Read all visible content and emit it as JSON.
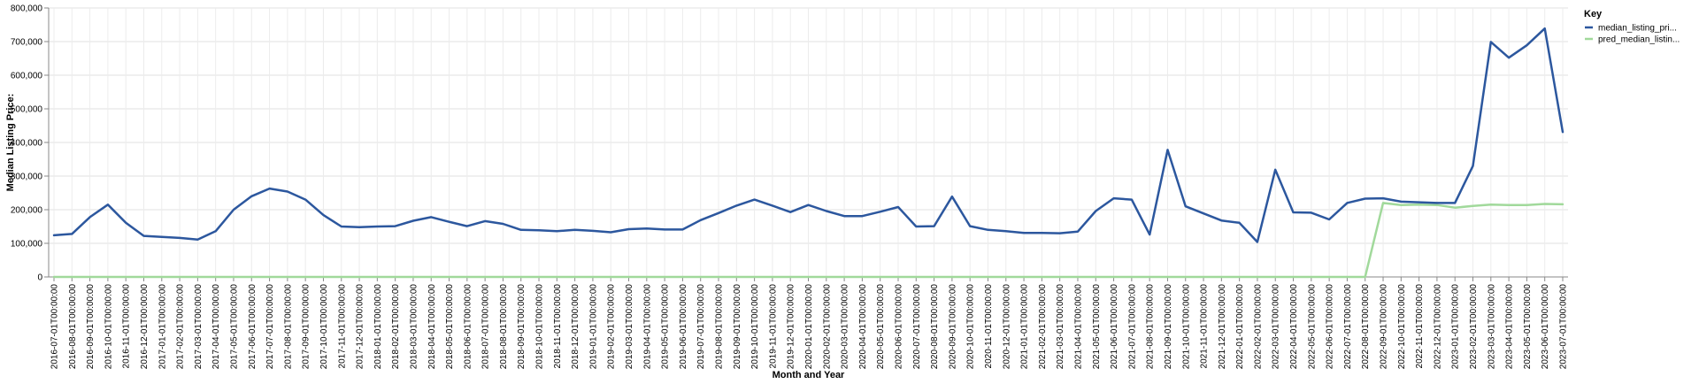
{
  "chart_data": {
    "type": "line",
    "xlabel": "Month and Year",
    "ylabel": "Median Listing Price:",
    "ylim": [
      0,
      800000
    ],
    "y_ticks": [
      0,
      100000,
      200000,
      300000,
      400000,
      500000,
      600000,
      700000,
      800000
    ],
    "y_tick_labels": [
      "0",
      "100,000",
      "200,000",
      "300,000",
      "400,000",
      "500,000",
      "600,000",
      "700,000",
      "800,000"
    ],
    "grid": true,
    "legend": {
      "title": "Key",
      "position": "right"
    },
    "x": [
      "2016-07-01T00:00:00",
      "2016-08-01T00:00:00",
      "2016-09-01T00:00:00",
      "2016-10-01T00:00:00",
      "2016-11-01T00:00:00",
      "2016-12-01T00:00:00",
      "2017-01-01T00:00:00",
      "2017-02-01T00:00:00",
      "2017-03-01T00:00:00",
      "2017-04-01T00:00:00",
      "2017-05-01T00:00:00",
      "2017-06-01T00:00:00",
      "2017-07-01T00:00:00",
      "2017-08-01T00:00:00",
      "2017-09-01T00:00:00",
      "2017-10-01T00:00:00",
      "2017-11-01T00:00:00",
      "2017-12-01T00:00:00",
      "2018-01-01T00:00:00",
      "2018-02-01T00:00:00",
      "2018-03-01T00:00:00",
      "2018-04-01T00:00:00",
      "2018-05-01T00:00:00",
      "2018-06-01T00:00:00",
      "2018-07-01T00:00:00",
      "2018-08-01T00:00:00",
      "2018-09-01T00:00:00",
      "2018-10-01T00:00:00",
      "2018-11-01T00:00:00",
      "2018-12-01T00:00:00",
      "2019-01-01T00:00:00",
      "2019-02-01T00:00:00",
      "2019-03-01T00:00:00",
      "2019-04-01T00:00:00",
      "2019-05-01T00:00:00",
      "2019-06-01T00:00:00",
      "2019-07-01T00:00:00",
      "2019-08-01T00:00:00",
      "2019-09-01T00:00:00",
      "2019-10-01T00:00:00",
      "2019-11-01T00:00:00",
      "2019-12-01T00:00:00",
      "2020-01-01T00:00:00",
      "2020-02-01T00:00:00",
      "2020-03-01T00:00:00",
      "2020-04-01T00:00:00",
      "2020-05-01T00:00:00",
      "2020-06-01T00:00:00",
      "2020-07-01T00:00:00",
      "2020-08-01T00:00:00",
      "2020-09-01T00:00:00",
      "2020-10-01T00:00:00",
      "2020-11-01T00:00:00",
      "2020-12-01T00:00:00",
      "2021-01-01T00:00:00",
      "2021-02-01T00:00:00",
      "2021-03-01T00:00:00",
      "2021-04-01T00:00:00",
      "2021-05-01T00:00:00",
      "2021-06-01T00:00:00",
      "2021-07-01T00:00:00",
      "2021-08-01T00:00:00",
      "2021-09-01T00:00:00",
      "2021-10-01T00:00:00",
      "2021-11-01T00:00:00",
      "2021-12-01T00:00:00",
      "2022-01-01T00:00:00",
      "2022-02-01T00:00:00",
      "2022-03-01T00:00:00",
      "2022-04-01T00:00:00",
      "2022-05-01T00:00:00",
      "2022-06-01T00:00:00",
      "2022-07-01T00:00:00",
      "2022-08-01T00:00:00",
      "2022-09-01T00:00:00",
      "2022-10-01T00:00:00",
      "2022-11-01T00:00:00",
      "2022-12-01T00:00:00",
      "2023-01-01T00:00:00",
      "2023-02-01T00:00:00",
      "2023-03-01T00:00:00",
      "2023-04-01T00:00:00",
      "2023-05-01T00:00:00",
      "2023-06-01T00:00:00",
      "2023-07-01T00:00:00"
    ],
    "series": [
      {
        "name": "median_listing_pri...",
        "color": "#2c579e",
        "values": [
          124000,
          128000,
          178000,
          215000,
          161000,
          122000,
          119000,
          116000,
          111000,
          136000,
          200000,
          240000,
          263000,
          254000,
          230000,
          184000,
          150000,
          148000,
          150000,
          151000,
          167000,
          178000,
          164000,
          151000,
          166000,
          158000,
          140000,
          139000,
          136000,
          140000,
          137000,
          133000,
          142000,
          144000,
          141000,
          141000,
          169000,
          190000,
          212000,
          230000,
          212000,
          193000,
          214000,
          196000,
          181000,
          181000,
          194000,
          208000,
          150000,
          151000,
          239000,
          151000,
          140000,
          136000,
          131000,
          131000,
          130000,
          135000,
          196000,
          234000,
          230000,
          126000,
          378000,
          210000,
          189000,
          168000,
          161000,
          104000,
          319000,
          192000,
          191000,
          171000,
          220000,
          233000,
          234000,
          224000,
          222000,
          220000,
          220000,
          330000,
          699000,
          652000,
          689000,
          739000,
          431000
        ]
      },
      {
        "name": "pred_median_listin...",
        "color": "#a1d99b",
        "values": [
          0,
          0,
          0,
          0,
          0,
          0,
          0,
          0,
          0,
          0,
          0,
          0,
          0,
          0,
          0,
          0,
          0,
          0,
          0,
          0,
          0,
          0,
          0,
          0,
          0,
          0,
          0,
          0,
          0,
          0,
          0,
          0,
          0,
          0,
          0,
          0,
          0,
          0,
          0,
          0,
          0,
          0,
          0,
          0,
          0,
          0,
          0,
          0,
          0,
          0,
          0,
          0,
          0,
          0,
          0,
          0,
          0,
          0,
          0,
          0,
          0,
          0,
          0,
          0,
          0,
          0,
          0,
          0,
          0,
          0,
          0,
          0,
          0,
          0,
          220000,
          214000,
          215000,
          214000,
          206000,
          211000,
          215000,
          214000,
          214000,
          217000,
          216000
        ]
      }
    ]
  }
}
